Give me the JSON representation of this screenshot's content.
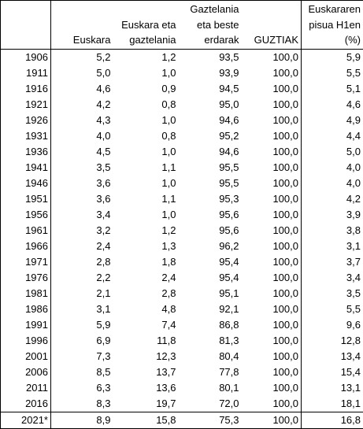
{
  "headers": {
    "year": [
      ""
    ],
    "euskara": [
      "Euskara"
    ],
    "euskara_gaztelania": [
      "Euskara eta",
      "gaztelania"
    ],
    "gaztelania": [
      "Gaztelania",
      "eta beste",
      "erdarak"
    ],
    "guztiak": [
      "GUZTIAK"
    ],
    "pisua": [
      "Euskararen",
      "pisua H1en",
      "(%)"
    ]
  },
  "rows": [
    {
      "year": "1906",
      "euskara": "5,2",
      "euskara_gaztelania": "1,2",
      "gaztelania": "93,5",
      "guztiak": "100,0",
      "pisua": "5,9"
    },
    {
      "year": "1911",
      "euskara": "5,0",
      "euskara_gaztelania": "1,0",
      "gaztelania": "93,9",
      "guztiak": "100,0",
      "pisua": "5,5"
    },
    {
      "year": "1916",
      "euskara": "4,6",
      "euskara_gaztelania": "0,9",
      "gaztelania": "94,5",
      "guztiak": "100,0",
      "pisua": "5,1"
    },
    {
      "year": "1921",
      "euskara": "4,2",
      "euskara_gaztelania": "0,8",
      "gaztelania": "95,0",
      "guztiak": "100,0",
      "pisua": "4,6"
    },
    {
      "year": "1926",
      "euskara": "4,3",
      "euskara_gaztelania": "1,0",
      "gaztelania": "94,6",
      "guztiak": "100,0",
      "pisua": "4,9"
    },
    {
      "year": "1931",
      "euskara": "4,0",
      "euskara_gaztelania": "0,8",
      "gaztelania": "95,2",
      "guztiak": "100,0",
      "pisua": "4,4"
    },
    {
      "year": "1936",
      "euskara": "4,5",
      "euskara_gaztelania": "1,0",
      "gaztelania": "94,6",
      "guztiak": "100,0",
      "pisua": "5,0"
    },
    {
      "year": "1941",
      "euskara": "3,5",
      "euskara_gaztelania": "1,1",
      "gaztelania": "95,5",
      "guztiak": "100,0",
      "pisua": "4,0"
    },
    {
      "year": "1946",
      "euskara": "3,6",
      "euskara_gaztelania": "1,0",
      "gaztelania": "95,5",
      "guztiak": "100,0",
      "pisua": "4,0"
    },
    {
      "year": "1951",
      "euskara": "3,6",
      "euskara_gaztelania": "1,1",
      "gaztelania": "95,3",
      "guztiak": "100,0",
      "pisua": "4,2"
    },
    {
      "year": "1956",
      "euskara": "3,4",
      "euskara_gaztelania": "1,0",
      "gaztelania": "95,6",
      "guztiak": "100,0",
      "pisua": "3,9"
    },
    {
      "year": "1961",
      "euskara": "3,2",
      "euskara_gaztelania": "1,2",
      "gaztelania": "95,6",
      "guztiak": "100,0",
      "pisua": "3,8"
    },
    {
      "year": "1966",
      "euskara": "2,4",
      "euskara_gaztelania": "1,3",
      "gaztelania": "96,2",
      "guztiak": "100,0",
      "pisua": "3,1"
    },
    {
      "year": "1971",
      "euskara": "2,8",
      "euskara_gaztelania": "1,8",
      "gaztelania": "95,4",
      "guztiak": "100,0",
      "pisua": "3,7"
    },
    {
      "year": "1976",
      "euskara": "2,2",
      "euskara_gaztelania": "2,4",
      "gaztelania": "95,4",
      "guztiak": "100,0",
      "pisua": "3,4"
    },
    {
      "year": "1981",
      "euskara": "2,1",
      "euskara_gaztelania": "2,8",
      "gaztelania": "95,1",
      "guztiak": "100,0",
      "pisua": "3,5"
    },
    {
      "year": "1986",
      "euskara": "3,1",
      "euskara_gaztelania": "4,8",
      "gaztelania": "92,1",
      "guztiak": "100,0",
      "pisua": "5,5"
    },
    {
      "year": "1991",
      "euskara": "5,9",
      "euskara_gaztelania": "7,4",
      "gaztelania": "86,8",
      "guztiak": "100,0",
      "pisua": "9,6"
    },
    {
      "year": "1996",
      "euskara": "6,9",
      "euskara_gaztelania": "11,8",
      "gaztelania": "81,3",
      "guztiak": "100,0",
      "pisua": "12,8"
    },
    {
      "year": "2001",
      "euskara": "7,3",
      "euskara_gaztelania": "12,3",
      "gaztelania": "80,4",
      "guztiak": "100,0",
      "pisua": "13,4"
    },
    {
      "year": "2006",
      "euskara": "8,5",
      "euskara_gaztelania": "13,7",
      "gaztelania": "77,8",
      "guztiak": "100,0",
      "pisua": "15,4"
    },
    {
      "year": "2011",
      "euskara": "6,3",
      "euskara_gaztelania": "13,6",
      "gaztelania": "80,1",
      "guztiak": "100,0",
      "pisua": "13,1"
    },
    {
      "year": "2016",
      "euskara": "8,3",
      "euskara_gaztelania": "19,7",
      "gaztelania": "72,0",
      "guztiak": "100,0",
      "pisua": "18,1"
    }
  ],
  "final_row": {
    "year": "2021*",
    "euskara": "8,9",
    "euskara_gaztelania": "15,8",
    "gaztelania": "75,3",
    "guztiak": "100,0",
    "pisua": "16,8"
  }
}
